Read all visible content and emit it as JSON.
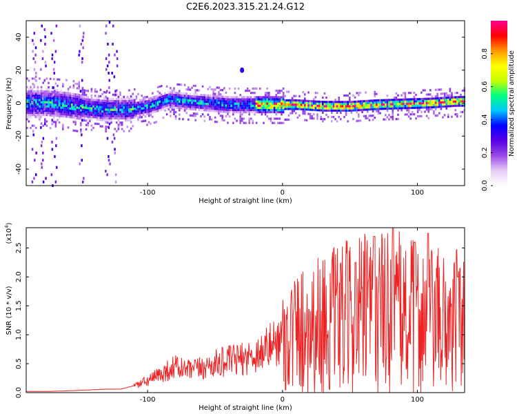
{
  "figure_title": "C2E6.2023.315.21.24.G12",
  "chart_data": [
    {
      "type": "heatmap",
      "xlabel": "Height of straight line (km)",
      "ylabel": "Frequency (Hz)",
      "xlim": [
        -190,
        135
      ],
      "ylim": [
        -50,
        50
      ],
      "x_ticks": [
        -100,
        0,
        100
      ],
      "y_ticks": [
        -40,
        -20,
        0,
        20,
        40
      ],
      "colorbar": {
        "label": "Normalized spectral amplitude",
        "range": [
          0,
          1
        ],
        "ticks": [
          0.0,
          0.2,
          0.4,
          0.6,
          0.8
        ],
        "colors": [
          "#ffffff",
          "#e6ccf5",
          "#9a4ae6",
          "#5a00e6",
          "#0000ff",
          "#00c8ff",
          "#00ff80",
          "#c8ff00",
          "#ffff00",
          "#ff9600",
          "#ff0000",
          "#ff0096"
        ]
      },
      "band_center_hz": [
        {
          "x": -175,
          "y": 0
        },
        {
          "x": -160,
          "y": -1
        },
        {
          "x": -145,
          "y": -3
        },
        {
          "x": -130,
          "y": -4
        },
        {
          "x": -115,
          "y": -4
        },
        {
          "x": -100,
          "y": -2
        },
        {
          "x": -85,
          "y": 2
        },
        {
          "x": -70,
          "y": 1
        },
        {
          "x": -55,
          "y": 0
        },
        {
          "x": -40,
          "y": -1
        },
        {
          "x": -25,
          "y": -1
        },
        {
          "x": -10,
          "y": -1
        },
        {
          "x": 10,
          "y": -1
        },
        {
          "x": 30,
          "y": -2
        },
        {
          "x": 50,
          "y": -2
        },
        {
          "x": 70,
          "y": -1
        },
        {
          "x": 90,
          "y": -0.5
        },
        {
          "x": 110,
          "y": 0
        },
        {
          "x": 130,
          "y": 1
        }
      ],
      "secondary_feature": {
        "x": -30,
        "y": 20
      }
    },
    {
      "type": "line",
      "xlabel": "Height of straight line (km)",
      "ylabel": "SNR (10 * v/v)",
      "multiplier_label": "(x10",
      "multiplier_exp": "4",
      "xlim": [
        -190,
        135
      ],
      "ylim": [
        0,
        2.85
      ],
      "x_ticks": [
        -100,
        0,
        100
      ],
      "y_ticks": [
        0.0,
        0.5,
        1.0,
        1.5,
        2.0,
        2.5
      ],
      "series": [
        {
          "color": "#ee2222",
          "x": [
            -190,
            -175,
            -160,
            -140,
            -130,
            -120,
            -110,
            -100,
            -90,
            -80,
            -70,
            -60,
            -50,
            -40,
            -30,
            -20,
            -10,
            0,
            10,
            20,
            30,
            40,
            50,
            60,
            70,
            80,
            90,
            100,
            110,
            120,
            130,
            135
          ],
          "y": [
            0.02,
            0.02,
            0.03,
            0.05,
            0.06,
            0.06,
            0.12,
            0.2,
            0.32,
            0.45,
            0.38,
            0.42,
            0.5,
            0.55,
            0.58,
            0.65,
            0.8,
            0.95,
            1.05,
            1.15,
            1.2,
            1.25,
            1.3,
            1.35,
            1.4,
            1.4,
            1.35,
            1.3,
            1.25,
            1.2,
            1.25,
            1.2
          ]
        }
      ],
      "peaks": [
        {
          "x": 54,
          "y": 2.25
        },
        {
          "x": 68,
          "y": 2.7
        },
        {
          "x": 82,
          "y": 2.85
        },
        {
          "x": 98,
          "y": 2.6
        },
        {
          "x": 108,
          "y": 2.75
        },
        {
          "x": 130,
          "y": 2.0
        }
      ]
    }
  ]
}
